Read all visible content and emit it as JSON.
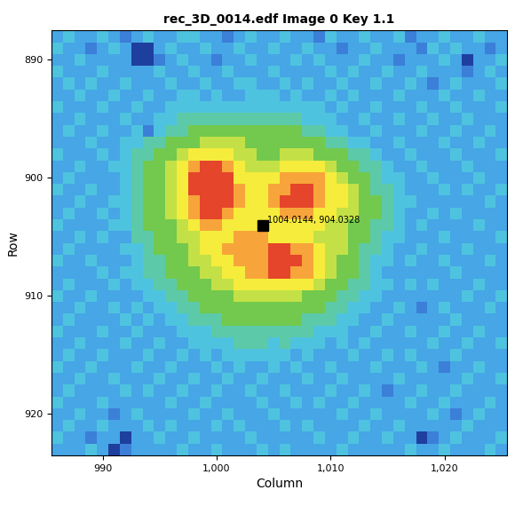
{
  "chart_data": {
    "type": "heatmap",
    "title": "rec_3D_0014.edf Image 0 Key 1.1",
    "x_label": "Column",
    "y_label": "Row",
    "grid": false,
    "xlim": [
      985.5,
      1025.5
    ],
    "ylim": [
      923.5,
      887.5
    ],
    "xticks": [
      990,
      {
        "value": 1000,
        "label": "1,000"
      },
      {
        "value": 1010,
        "label": "1,010"
      },
      {
        "value": 1020,
        "label": "1,020"
      }
    ],
    "yticks": [
      890,
      900,
      910,
      920
    ],
    "colors": [
      "#1f3f9f",
      "#3b7fd8",
      "#46a6e6",
      "#4ec3df",
      "#5ccaa8",
      "#72c94d",
      "#c3e146",
      "#f6ec3c",
      "#f7a53a",
      "#e5452a"
    ],
    "columns": [
      986,
      987,
      988,
      989,
      990,
      991,
      992,
      993,
      994,
      995,
      996,
      997,
      998,
      999,
      1000,
      1001,
      1002,
      1003,
      1004,
      1005,
      1006,
      1007,
      1008,
      1009,
      1010,
      1011,
      1012,
      1013,
      1014,
      1015,
      1016,
      1017,
      1018,
      1019,
      1020,
      1021,
      1022,
      1023,
      1024,
      1025
    ],
    "rows": [
      888,
      889,
      890,
      891,
      892,
      893,
      894,
      895,
      896,
      897,
      898,
      899,
      900,
      901,
      902,
      903,
      904,
      905,
      906,
      907,
      908,
      909,
      910,
      911,
      912,
      913,
      914,
      915,
      916,
      917,
      918,
      919,
      920,
      921,
      922,
      923
    ],
    "cells": [
      [
        2,
        3,
        2,
        2,
        3,
        2,
        1,
        2,
        3,
        2,
        2,
        3,
        3,
        2,
        2,
        1,
        2,
        3,
        2,
        2,
        3,
        2,
        2,
        1,
        3,
        2,
        2,
        3,
        2,
        2,
        3,
        1,
        2,
        2,
        3,
        2,
        2,
        3,
        2,
        2
      ],
      [
        3,
        2,
        2,
        1,
        2,
        3,
        2,
        0,
        0,
        2,
        3,
        2,
        2,
        3,
        2,
        2,
        3,
        2,
        2,
        3,
        2,
        2,
        3,
        2,
        2,
        1,
        2,
        2,
        3,
        2,
        2,
        2,
        1,
        3,
        2,
        3,
        2,
        2,
        1,
        2
      ],
      [
        2,
        2,
        3,
        2,
        2,
        2,
        2,
        0,
        0,
        1,
        2,
        3,
        2,
        2,
        1,
        2,
        2,
        3,
        2,
        2,
        2,
        3,
        2,
        3,
        2,
        2,
        2,
        3,
        2,
        2,
        1,
        2,
        2,
        2,
        3,
        2,
        0,
        2,
        2,
        3
      ],
      [
        3,
        2,
        2,
        2,
        3,
        2,
        2,
        2,
        2,
        3,
        2,
        2,
        3,
        2,
        2,
        3,
        2,
        2,
        2,
        3,
        2,
        2,
        2,
        2,
        3,
        2,
        3,
        2,
        2,
        3,
        2,
        2,
        3,
        2,
        2,
        2,
        1,
        2,
        3,
        2
      ],
      [
        2,
        3,
        2,
        3,
        2,
        2,
        3,
        2,
        2,
        2,
        3,
        2,
        2,
        3,
        2,
        2,
        3,
        3,
        2,
        2,
        3,
        2,
        3,
        2,
        2,
        3,
        2,
        2,
        3,
        2,
        2,
        3,
        2,
        1,
        2,
        3,
        2,
        2,
        2,
        3
      ],
      [
        2,
        2,
        3,
        2,
        2,
        3,
        2,
        2,
        3,
        2,
        2,
        3,
        3,
        2,
        3,
        2,
        2,
        3,
        3,
        3,
        2,
        3,
        2,
        2,
        3,
        2,
        3,
        2,
        2,
        2,
        3,
        2,
        2,
        2,
        3,
        2,
        2,
        3,
        2,
        2
      ],
      [
        3,
        2,
        2,
        2,
        3,
        2,
        2,
        3,
        2,
        2,
        3,
        3,
        3,
        3,
        3,
        3,
        3,
        3,
        3,
        3,
        3,
        3,
        3,
        3,
        2,
        3,
        2,
        2,
        3,
        2,
        2,
        2,
        3,
        2,
        2,
        3,
        2,
        2,
        2,
        3
      ],
      [
        2,
        2,
        3,
        2,
        2,
        2,
        3,
        2,
        2,
        3,
        3,
        4,
        4,
        4,
        4,
        4,
        4,
        4,
        4,
        4,
        4,
        4,
        3,
        3,
        3,
        2,
        2,
        3,
        2,
        2,
        3,
        2,
        2,
        3,
        2,
        2,
        3,
        2,
        2,
        2
      ],
      [
        2,
        3,
        2,
        2,
        3,
        2,
        2,
        3,
        1,
        3,
        4,
        4,
        5,
        5,
        5,
        5,
        5,
        5,
        5,
        5,
        5,
        5,
        4,
        4,
        3,
        3,
        2,
        2,
        3,
        2,
        2,
        2,
        3,
        2,
        2,
        3,
        2,
        2,
        3,
        2
      ],
      [
        2,
        2,
        2,
        3,
        2,
        2,
        3,
        3,
        4,
        4,
        5,
        5,
        5,
        6,
        6,
        6,
        6,
        5,
        5,
        5,
        5,
        5,
        5,
        5,
        4,
        4,
        3,
        3,
        2,
        2,
        3,
        2,
        2,
        2,
        3,
        2,
        2,
        3,
        2,
        2
      ],
      [
        3,
        2,
        2,
        2,
        3,
        2,
        3,
        4,
        4,
        5,
        5,
        6,
        7,
        7,
        7,
        7,
        6,
        6,
        5,
        5,
        6,
        6,
        6,
        5,
        5,
        5,
        4,
        4,
        3,
        2,
        2,
        3,
        2,
        2,
        2,
        3,
        2,
        2,
        2,
        3
      ],
      [
        2,
        2,
        3,
        2,
        2,
        3,
        3,
        4,
        5,
        5,
        6,
        7,
        8,
        9,
        9,
        8,
        7,
        6,
        6,
        6,
        7,
        7,
        7,
        7,
        6,
        5,
        5,
        4,
        4,
        3,
        2,
        2,
        3,
        2,
        2,
        2,
        3,
        2,
        2,
        2
      ],
      [
        2,
        3,
        2,
        2,
        2,
        2,
        3,
        4,
        5,
        5,
        6,
        7,
        9,
        9,
        9,
        9,
        7,
        7,
        7,
        7,
        8,
        8,
        8,
        8,
        7,
        6,
        5,
        5,
        4,
        3,
        3,
        2,
        2,
        3,
        2,
        2,
        2,
        3,
        2,
        2
      ],
      [
        3,
        2,
        2,
        3,
        2,
        2,
        3,
        4,
        5,
        5,
        6,
        7,
        9,
        9,
        9,
        9,
        8,
        7,
        7,
        8,
        8,
        9,
        9,
        8,
        7,
        7,
        6,
        5,
        4,
        4,
        3,
        2,
        2,
        2,
        3,
        2,
        3,
        2,
        2,
        3
      ],
      [
        2,
        2,
        3,
        2,
        2,
        3,
        3,
        4,
        5,
        5,
        6,
        7,
        8,
        9,
        9,
        9,
        8,
        7,
        7,
        8,
        9,
        9,
        9,
        8,
        7,
        7,
        6,
        5,
        5,
        4,
        3,
        3,
        2,
        2,
        2,
        2,
        2,
        2,
        3,
        2
      ],
      [
        2,
        3,
        2,
        2,
        3,
        2,
        3,
        4,
        5,
        5,
        6,
        7,
        8,
        9,
        9,
        8,
        7,
        7,
        7,
        7,
        8,
        8,
        8,
        7,
        7,
        6,
        6,
        5,
        5,
        4,
        3,
        2,
        2,
        3,
        2,
        3,
        2,
        2,
        2,
        2
      ],
      [
        3,
        2,
        2,
        2,
        2,
        3,
        3,
        4,
        5,
        5,
        5,
        6,
        7,
        8,
        8,
        7,
        7,
        7,
        7,
        7,
        7,
        7,
        7,
        7,
        6,
        6,
        5,
        5,
        4,
        4,
        3,
        2,
        3,
        2,
        2,
        2,
        2,
        3,
        2,
        2
      ],
      [
        2,
        2,
        3,
        2,
        3,
        2,
        2,
        4,
        4,
        5,
        5,
        6,
        6,
        7,
        7,
        7,
        8,
        8,
        8,
        7,
        7,
        7,
        7,
        6,
        6,
        6,
        5,
        5,
        4,
        3,
        3,
        2,
        2,
        2,
        3,
        2,
        2,
        2,
        2,
        3
      ],
      [
        2,
        3,
        2,
        2,
        2,
        2,
        3,
        3,
        4,
        5,
        5,
        5,
        6,
        7,
        7,
        8,
        8,
        8,
        8,
        9,
        9,
        8,
        8,
        7,
        6,
        6,
        5,
        4,
        4,
        3,
        2,
        2,
        3,
        2,
        2,
        2,
        3,
        2,
        2,
        2
      ],
      [
        3,
        2,
        2,
        3,
        2,
        2,
        2,
        3,
        4,
        4,
        5,
        5,
        6,
        6,
        7,
        7,
        8,
        8,
        8,
        9,
        9,
        9,
        8,
        7,
        6,
        5,
        5,
        4,
        3,
        3,
        2,
        3,
        2,
        2,
        3,
        2,
        2,
        2,
        3,
        2
      ],
      [
        2,
        2,
        2,
        2,
        3,
        2,
        3,
        3,
        4,
        4,
        5,
        5,
        5,
        6,
        6,
        7,
        7,
        8,
        8,
        9,
        9,
        8,
        8,
        7,
        6,
        5,
        5,
        4,
        3,
        2,
        2,
        2,
        2,
        2,
        2,
        3,
        2,
        2,
        2,
        2
      ],
      [
        2,
        3,
        2,
        2,
        2,
        3,
        2,
        3,
        3,
        4,
        4,
        5,
        5,
        5,
        6,
        6,
        7,
        7,
        7,
        7,
        7,
        7,
        7,
        6,
        5,
        5,
        4,
        4,
        3,
        3,
        2,
        3,
        2,
        3,
        2,
        2,
        2,
        3,
        2,
        2
      ],
      [
        3,
        2,
        2,
        3,
        2,
        2,
        2,
        2,
        3,
        3,
        4,
        4,
        5,
        5,
        5,
        5,
        6,
        6,
        6,
        6,
        6,
        6,
        5,
        5,
        5,
        4,
        4,
        3,
        3,
        2,
        2,
        2,
        2,
        2,
        2,
        2,
        3,
        2,
        2,
        3
      ],
      [
        2,
        2,
        3,
        2,
        2,
        3,
        2,
        3,
        2,
        3,
        3,
        4,
        4,
        5,
        5,
        5,
        5,
        5,
        5,
        5,
        5,
        5,
        5,
        5,
        4,
        4,
        3,
        3,
        2,
        2,
        3,
        2,
        1,
        2,
        3,
        2,
        2,
        2,
        3,
        2
      ],
      [
        2,
        3,
        2,
        2,
        2,
        2,
        3,
        2,
        3,
        2,
        3,
        3,
        4,
        4,
        4,
        5,
        5,
        5,
        5,
        5,
        5,
        5,
        4,
        4,
        4,
        3,
        3,
        2,
        2,
        3,
        2,
        2,
        2,
        2,
        2,
        3,
        2,
        2,
        2,
        2
      ],
      [
        3,
        2,
        2,
        2,
        3,
        2,
        2,
        3,
        2,
        2,
        2,
        3,
        3,
        3,
        4,
        4,
        4,
        4,
        4,
        4,
        4,
        4,
        4,
        3,
        3,
        3,
        2,
        2,
        3,
        2,
        2,
        3,
        2,
        2,
        3,
        2,
        2,
        3,
        2,
        2
      ],
      [
        2,
        2,
        3,
        2,
        2,
        2,
        3,
        2,
        2,
        3,
        2,
        2,
        3,
        3,
        3,
        3,
        4,
        4,
        4,
        3,
        4,
        3,
        3,
        3,
        2,
        3,
        2,
        3,
        2,
        2,
        2,
        2,
        2,
        3,
        2,
        2,
        3,
        2,
        2,
        3
      ],
      [
        2,
        3,
        2,
        2,
        3,
        2,
        2,
        2,
        3,
        2,
        2,
        3,
        2,
        3,
        2,
        3,
        3,
        3,
        3,
        3,
        3,
        2,
        3,
        2,
        2,
        2,
        3,
        2,
        2,
        3,
        2,
        3,
        2,
        2,
        2,
        3,
        2,
        2,
        2,
        2
      ],
      [
        3,
        2,
        2,
        3,
        2,
        2,
        2,
        3,
        2,
        2,
        3,
        2,
        2,
        2,
        3,
        2,
        3,
        2,
        2,
        3,
        2,
        3,
        2,
        2,
        3,
        2,
        2,
        2,
        3,
        2,
        2,
        2,
        3,
        2,
        1,
        2,
        2,
        3,
        2,
        2
      ],
      [
        2,
        2,
        3,
        2,
        2,
        3,
        2,
        2,
        2,
        3,
        2,
        2,
        3,
        2,
        2,
        3,
        2,
        2,
        3,
        2,
        2,
        2,
        3,
        2,
        2,
        3,
        2,
        2,
        2,
        2,
        3,
        2,
        2,
        2,
        2,
        2,
        3,
        2,
        2,
        3
      ],
      [
        2,
        3,
        2,
        2,
        2,
        2,
        3,
        2,
        3,
        2,
        2,
        3,
        2,
        2,
        3,
        2,
        2,
        3,
        2,
        2,
        3,
        2,
        2,
        2,
        3,
        2,
        2,
        3,
        2,
        1,
        2,
        2,
        3,
        2,
        2,
        3,
        2,
        2,
        2,
        2
      ],
      [
        3,
        2,
        2,
        2,
        3,
        2,
        2,
        2,
        2,
        2,
        3,
        2,
        2,
        3,
        2,
        2,
        2,
        2,
        3,
        2,
        2,
        3,
        2,
        3,
        2,
        2,
        3,
        2,
        2,
        2,
        2,
        3,
        2,
        2,
        3,
        2,
        2,
        2,
        3,
        2
      ],
      [
        2,
        2,
        3,
        2,
        2,
        1,
        2,
        3,
        2,
        2,
        2,
        2,
        3,
        2,
        2,
        3,
        2,
        2,
        2,
        3,
        2,
        2,
        2,
        2,
        2,
        3,
        2,
        2,
        3,
        2,
        2,
        2,
        2,
        3,
        2,
        1,
        2,
        3,
        2,
        2
      ],
      [
        2,
        3,
        2,
        2,
        3,
        2,
        2,
        2,
        3,
        2,
        3,
        2,
        2,
        2,
        3,
        2,
        3,
        2,
        2,
        2,
        3,
        2,
        3,
        2,
        2,
        2,
        2,
        3,
        2,
        2,
        3,
        2,
        2,
        2,
        2,
        2,
        3,
        2,
        2,
        2
      ],
      [
        3,
        2,
        2,
        1,
        2,
        2,
        0,
        2,
        2,
        3,
        2,
        2,
        3,
        2,
        2,
        2,
        2,
        3,
        2,
        2,
        2,
        2,
        2,
        3,
        2,
        2,
        3,
        2,
        2,
        3,
        2,
        2,
        0,
        1,
        2,
        3,
        2,
        2,
        2,
        3
      ],
      [
        2,
        2,
        2,
        3,
        2,
        0,
        1,
        2,
        2,
        2,
        2,
        3,
        2,
        2,
        3,
        2,
        2,
        2,
        3,
        2,
        3,
        2,
        2,
        2,
        2,
        3,
        2,
        2,
        2,
        2,
        2,
        3,
        2,
        2,
        3,
        2,
        2,
        2,
        3,
        2
      ]
    ],
    "annotations": [
      {
        "text": "1004.0144, 904.0328",
        "x": 1004.0144,
        "y": 904.0328,
        "marker": "square",
        "color": "#000000"
      }
    ]
  }
}
